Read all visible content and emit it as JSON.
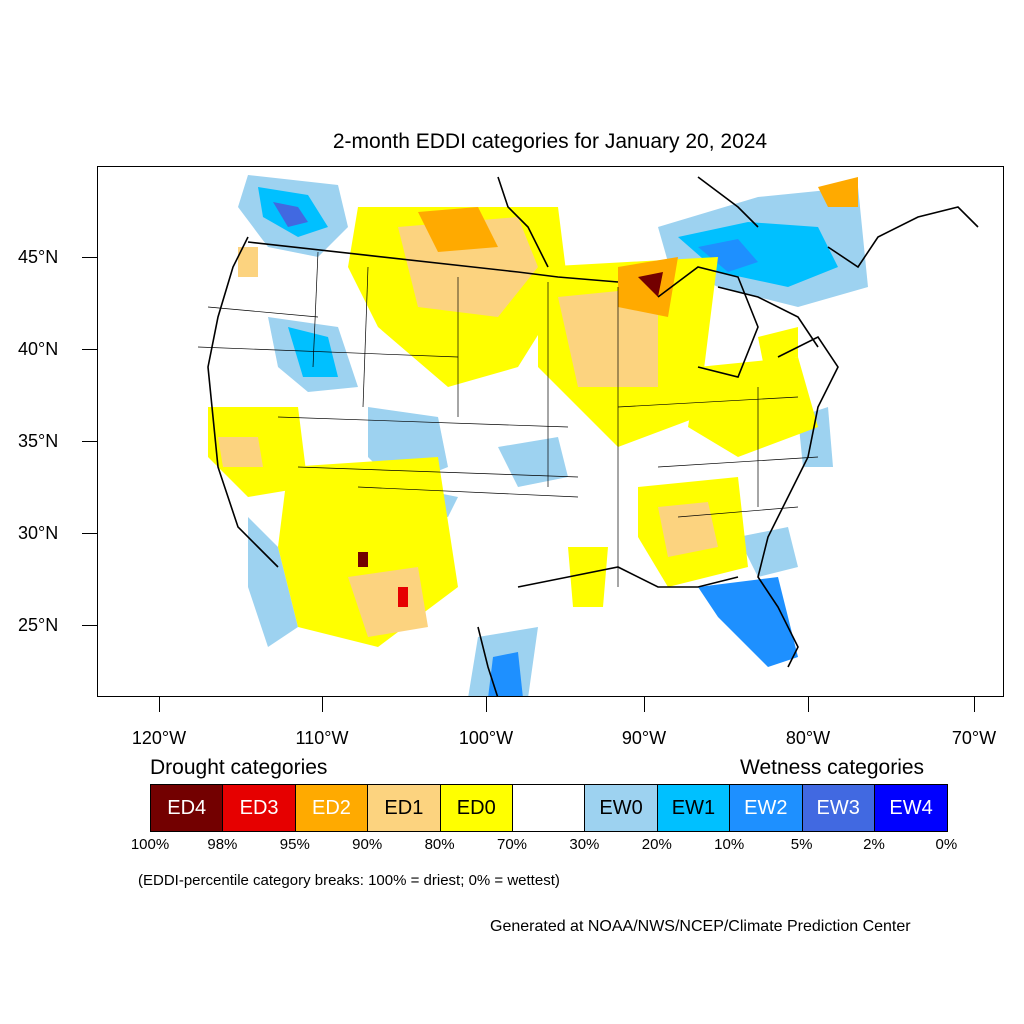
{
  "title": "2-month EDDI categories for January 20, 2024",
  "lat_labels": [
    "45°N",
    "40°N",
    "35°N",
    "30°N",
    "25°N"
  ],
  "lon_labels": [
    "120°W",
    "110°W",
    "100°W",
    "90°W",
    "80°W",
    "70°W"
  ],
  "legend": {
    "drought_heading": "Drought categories",
    "wetness_heading": "Wetness categories",
    "categories": [
      {
        "label": "ED4",
        "color": "#730000",
        "text_color": "#ffffff"
      },
      {
        "label": "ED3",
        "color": "#e60000",
        "text_color": "#ffffff"
      },
      {
        "label": "ED2",
        "color": "#ffaa00",
        "text_color": "#ffffff"
      },
      {
        "label": "ED1",
        "color": "#fcd37f",
        "text_color": "#000000"
      },
      {
        "label": "ED0",
        "color": "#ffff00",
        "text_color": "#000000"
      },
      {
        "label": "",
        "color": "#ffffff",
        "text_color": "#000000"
      },
      {
        "label": "EW0",
        "color": "#9dd2f0",
        "text_color": "#000000"
      },
      {
        "label": "EW1",
        "color": "#00c0ff",
        "text_color": "#000000"
      },
      {
        "label": "EW2",
        "color": "#1e90ff",
        "text_color": "#ffffff"
      },
      {
        "label": "EW3",
        "color": "#4169e1",
        "text_color": "#ffffff"
      },
      {
        "label": "EW4",
        "color": "#0000ff",
        "text_color": "#ffffff"
      }
    ],
    "percentiles": [
      "100%",
      "98%",
      "95%",
      "90%",
      "80%",
      "70%",
      "30%",
      "20%",
      "10%",
      "5%",
      "2%",
      "0%"
    ]
  },
  "note": "(EDDI-percentile category breaks: 100% = driest; 0% = wettest)",
  "credit": "Generated at NOAA/NWS/NCEP/Climate Prediction Center"
}
